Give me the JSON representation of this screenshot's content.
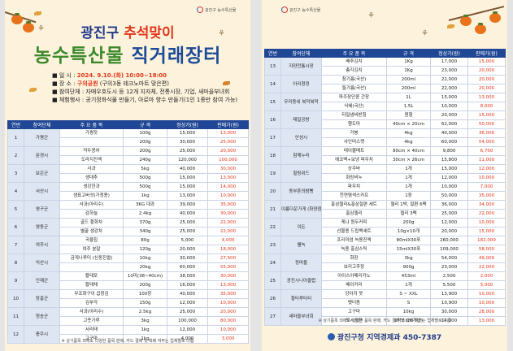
{
  "logo_text": "광진구 농수특산물",
  "left": {
    "title_prefix": "광진구 ",
    "title_highlight": "추석맞이",
    "title_line2_a": "농수특산물",
    "title_line2_b": " 직거래장터",
    "info": [
      {
        "bullet": "일   시 : ",
        "value": "2024. 9.10.(화) 10:00~18:00",
        "style": "sh"
      },
      {
        "bullet": "장   소 : ",
        "value": "구의공원",
        "suffix": " (구의3동 테크노마트 맞은편)",
        "style": "loc"
      },
      {
        "bullet": "참여단체 : ",
        "value": "자매우호도시 등 12개 지자체, 전통시장, 기업, 새마을부녀회",
        "style": ""
      },
      {
        "bullet": "체험행사 : ",
        "value": "공기정화식물 만들기, 아로마 향수 만들기(1인 1종만 참여 가능)",
        "style": ""
      }
    ],
    "headers": [
      "연번",
      "참여단체",
      "주 요 품 목",
      "규 격",
      "정상가(원)",
      "판매가(원)"
    ],
    "rows": [
      {
        "no": "1",
        "org": "가평군",
        "item": "가평잣",
        "spec": "100g",
        "price": "15,000",
        "sale": "13,000",
        "span": 2
      },
      {
        "item": "",
        "spec": "200g",
        "price": "30,000",
        "sale": "25,000"
      },
      {
        "no": "2",
        "org": "문경시",
        "item": "작두콩차",
        "spec": "200g",
        "price": "25,000",
        "sale": "20,000",
        "span": 2
      },
      {
        "item": "도라지진액",
        "spec": "240g",
        "price": "120,000",
        "sale": "100,000"
      },
      {
        "no": "3",
        "org": "보은군",
        "item": "사과",
        "spec": "5kg",
        "price": "40,000",
        "sale": "30,000",
        "span": 2
      },
      {
        "item": "생대추",
        "spec": "500g",
        "price": "15,000",
        "sale": "13,000"
      },
      {
        "no": "4",
        "org": "서산시",
        "item": "생강한과",
        "spec": "500g",
        "price": "15,000",
        "sale": "14,000",
        "span": 2
      },
      {
        "item": "생표고버섯(가정용)",
        "spec": "1kg",
        "price": "13,000",
        "sale": "10,000"
      },
      {
        "no": "5",
        "org": "영구군",
        "item": "사과(아리수)",
        "spec": "3KG 대과",
        "price": "39,000",
        "sale": "35,000",
        "span": 2
      },
      {
        "item": "감하늘",
        "spec": "2.4kg",
        "price": "40,000",
        "sale": "30,000"
      },
      {
        "no": "6",
        "org": "영동군",
        "item": "골드 황화차",
        "spec": "370g",
        "price": "25,000",
        "sale": "22,000",
        "span": 2
      },
      {
        "item": "별꿀 생강차",
        "spec": "340g",
        "price": "25,000",
        "sale": "22,000"
      },
      {
        "no": "7",
        "org": "여주시",
        "item": "곡물칩",
        "spec": "80g",
        "price": "5,000",
        "sale": "4,000",
        "span": 2
      },
      {
        "item": "여주 분말",
        "spec": "120g",
        "price": "20,000",
        "sale": "18,000"
      },
      {
        "no": "8",
        "org": "익산시",
        "item": "금게나루미 (신동진쌀)",
        "spec": "10kg",
        "price": "30,000",
        "sale": "27,500",
        "span": 2
      },
      {
        "item": "",
        "spec": "20kg",
        "price": "60,000",
        "sale": "55,000"
      },
      {
        "no": "9",
        "org": "인제군",
        "item": "황태포",
        "spec": "10미(38~40cm)",
        "price": "38,000",
        "sale": "30,000",
        "span": 2
      },
      {
        "item": "황태채",
        "spec": "200g",
        "price": "16,000",
        "sale": "13,000"
      },
      {
        "no": "10",
        "org": "장흥군",
        "item": "무조화구이 곱창김",
        "spec": "100장",
        "price": "40,000",
        "sale": "35,000",
        "span": 2
      },
      {
        "item": "김부각",
        "spec": "150g",
        "price": "12,000",
        "sale": "10,000"
      },
      {
        "no": "11",
        "org": "청송군",
        "item": "사과(아리수)",
        "spec": "2.5kg",
        "price": "25,000",
        "sale": "20,000",
        "span": 2
      },
      {
        "item": "고춧가루",
        "spec": "3kg",
        "price": "100,000",
        "sale": "80,000"
      },
      {
        "no": "12",
        "org": "충주시",
        "item": "서리태",
        "spec": "1kg",
        "price": "12,000",
        "sale": "10,000",
        "span": 2
      },
      {
        "item": "고구마",
        "spec": "1kg",
        "price": "4,000",
        "sale": "3,000"
      }
    ],
    "note": "※ 상기품목 외에도 다양한 품목 판매, 카드 결제 및 택배 여부는 업체별로 다름"
  },
  "right": {
    "headers": [
      "연번",
      "참여단체",
      "주 요 품 목",
      "규 격",
      "정상가(원)",
      "판매가(원)"
    ],
    "rows": [
      {
        "no": "13",
        "org": "자양전통시장",
        "item": "배추김치",
        "spec": "1Kg",
        "price": "17,000",
        "sale": "15,000",
        "span": 2
      },
      {
        "item": "총각김치",
        "spec": "1Kg",
        "price": "23,000",
        "sale": "20,000"
      },
      {
        "no": "14",
        "org": "아리청정",
        "item": "참기름(국산)",
        "spec": "200ml",
        "price": "22,000",
        "sale": "20,000",
        "span": 2
      },
      {
        "item": "들기름(국산)",
        "spec": "200ml",
        "price": "22,000",
        "sale": "20,000"
      },
      {
        "no": "15",
        "org": "우리동네 복덕복덕",
        "item": "파주장단콩 간장",
        "spec": "1L",
        "price": "15,000",
        "sale": "13,000",
        "span": 2
      },
      {
        "item": "식혜(국산)",
        "spec": "1.5L",
        "price": "10,000",
        "sale": "8,000"
      },
      {
        "no": "16",
        "org": "태일공방",
        "item": "타일냄비받침",
        "spec": "원형",
        "price": "20,000",
        "sale": "15,000",
        "span": 2
      },
      {
        "item": "행도마",
        "spec": "40cm × 20cm",
        "price": "62,000",
        "sale": "50,000"
      },
      {
        "no": "17",
        "org": "안성시",
        "item": "거봉",
        "spec": "4kg",
        "price": "40,000",
        "sale": "36,000",
        "span": 2
      },
      {
        "item": "샤인머스켓",
        "spec": "4kg",
        "price": "60,000",
        "sale": "54,000"
      },
      {
        "no": "18",
        "org": "함께누리",
        "item": "테이블매트",
        "spec": "80cm × 40cm",
        "price": "9,800",
        "sale": "6,700",
        "span": 2
      },
      {
        "item": "에코백+보냉 파우치",
        "spec": "30cm × 26cm",
        "price": "15,800",
        "sale": "11,000"
      },
      {
        "no": "19",
        "org": "힐링위드",
        "item": "상주바",
        "spec": "1개",
        "price": "15,000",
        "sale": "12,000",
        "span": 2
      },
      {
        "item": "화장비누",
        "spec": "1개",
        "price": "12,000",
        "sale": "10,000"
      },
      {
        "no": "20",
        "org": "동부혼의밤빵",
        "item": "파우치",
        "spec": "1개",
        "price": "10,000",
        "sale": "7,000",
        "span": 2
      },
      {
        "item": "천연염색스카프",
        "spec": "1장",
        "price": "50,000",
        "sale": "35,000"
      },
      {
        "no": "21",
        "org": "이룸다운가게 (화양점)",
        "item": "홍삼젤리&홍삼절편 세트",
        "spec": "젤리 1박, 절편 6팩",
        "price": "36,000",
        "sale": "34,000",
        "span": 2
      },
      {
        "item": "홍삼젤리",
        "spec": "젤리 3팩",
        "price": "25,000",
        "sale": "22,000"
      },
      {
        "no": "22",
        "org": "이든",
        "item": "케냐 원두커피",
        "spec": "200g",
        "price": "12,000",
        "sale": "10,000",
        "span": 2
      },
      {
        "item": "선물용 드립백세트",
        "spec": "10g×10개",
        "price": "20,000",
        "sale": "15,000"
      },
      {
        "no": "23",
        "org": "웰녹",
        "item": "프리미엄 녹용진액",
        "spec": "80mlX30포",
        "price": "260,000",
        "sale": "182,000",
        "span": 2
      },
      {
        "item": "녹용 홍삼스틱",
        "spec": "15mlX30포",
        "price": "109,000",
        "sale": "58,000"
      },
      {
        "no": "24",
        "org": "정마을",
        "item": "화장",
        "spec": "3kg",
        "price": "54,000",
        "sale": "49,000",
        "span": 2
      },
      {
        "item": "보리고추장",
        "spec": "900g",
        "price": "23,000",
        "sale": "22,000"
      },
      {
        "no": "25",
        "org": "광진시니어클럽",
        "item": "아이스아메리카노",
        "spec": "453ml",
        "price": "2,500",
        "sale": "2,000",
        "span": 2
      },
      {
        "item": "베이커리",
        "spec": "1개",
        "price": "5,500",
        "sale": "5,000"
      },
      {
        "no": "26",
        "org": "할티루티티",
        "item": "강아지 옷",
        "spec": "S ~ XXL",
        "price": "13,900",
        "sale": "10,000",
        "span": 2
      },
      {
        "item": "펫더돔",
        "spec": "S",
        "price": "10,900",
        "sale": "10,000"
      },
      {
        "no": "27",
        "org": "새마을부녀회",
        "item": "고구마",
        "spec": "10kg",
        "price": "30,000",
        "sale": "28,000",
        "span": 2
      },
      {
        "item": "모시송편",
        "spec": "1박스(20개입)",
        "price": "14,000",
        "sale": "13,000"
      }
    ],
    "note": "※ 상기품목 외에도 다양한 품목 판매, 카드 결제 및 택배 여부는 업체별로 다름",
    "footer": "광진구청 지역경제과 450-7387"
  }
}
